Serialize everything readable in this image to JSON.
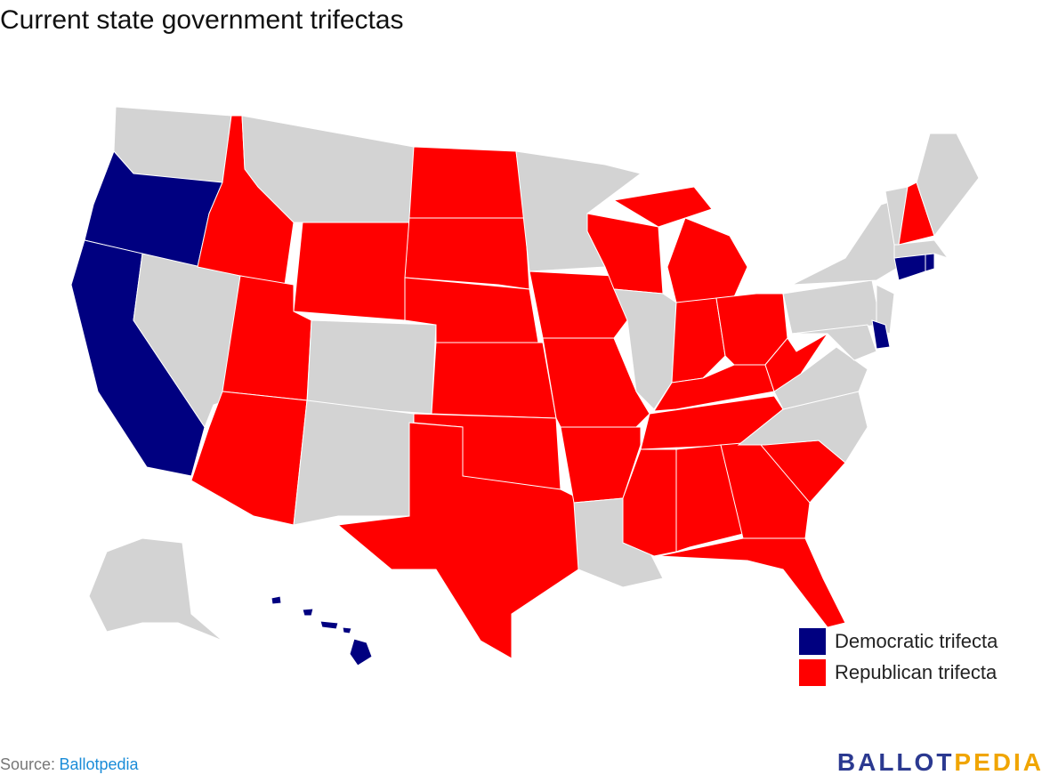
{
  "title": "Current state government trifectas",
  "legend": [
    {
      "label": "Democratic trifecta",
      "color": "#000080"
    },
    {
      "label": "Republican trifecta",
      "color": "#ff0000"
    }
  ],
  "source": {
    "prefix": "Source:",
    "link": "Ballotpedia"
  },
  "logo": {
    "part1": "BALLOT",
    "part2": "PEDIA"
  }
}
